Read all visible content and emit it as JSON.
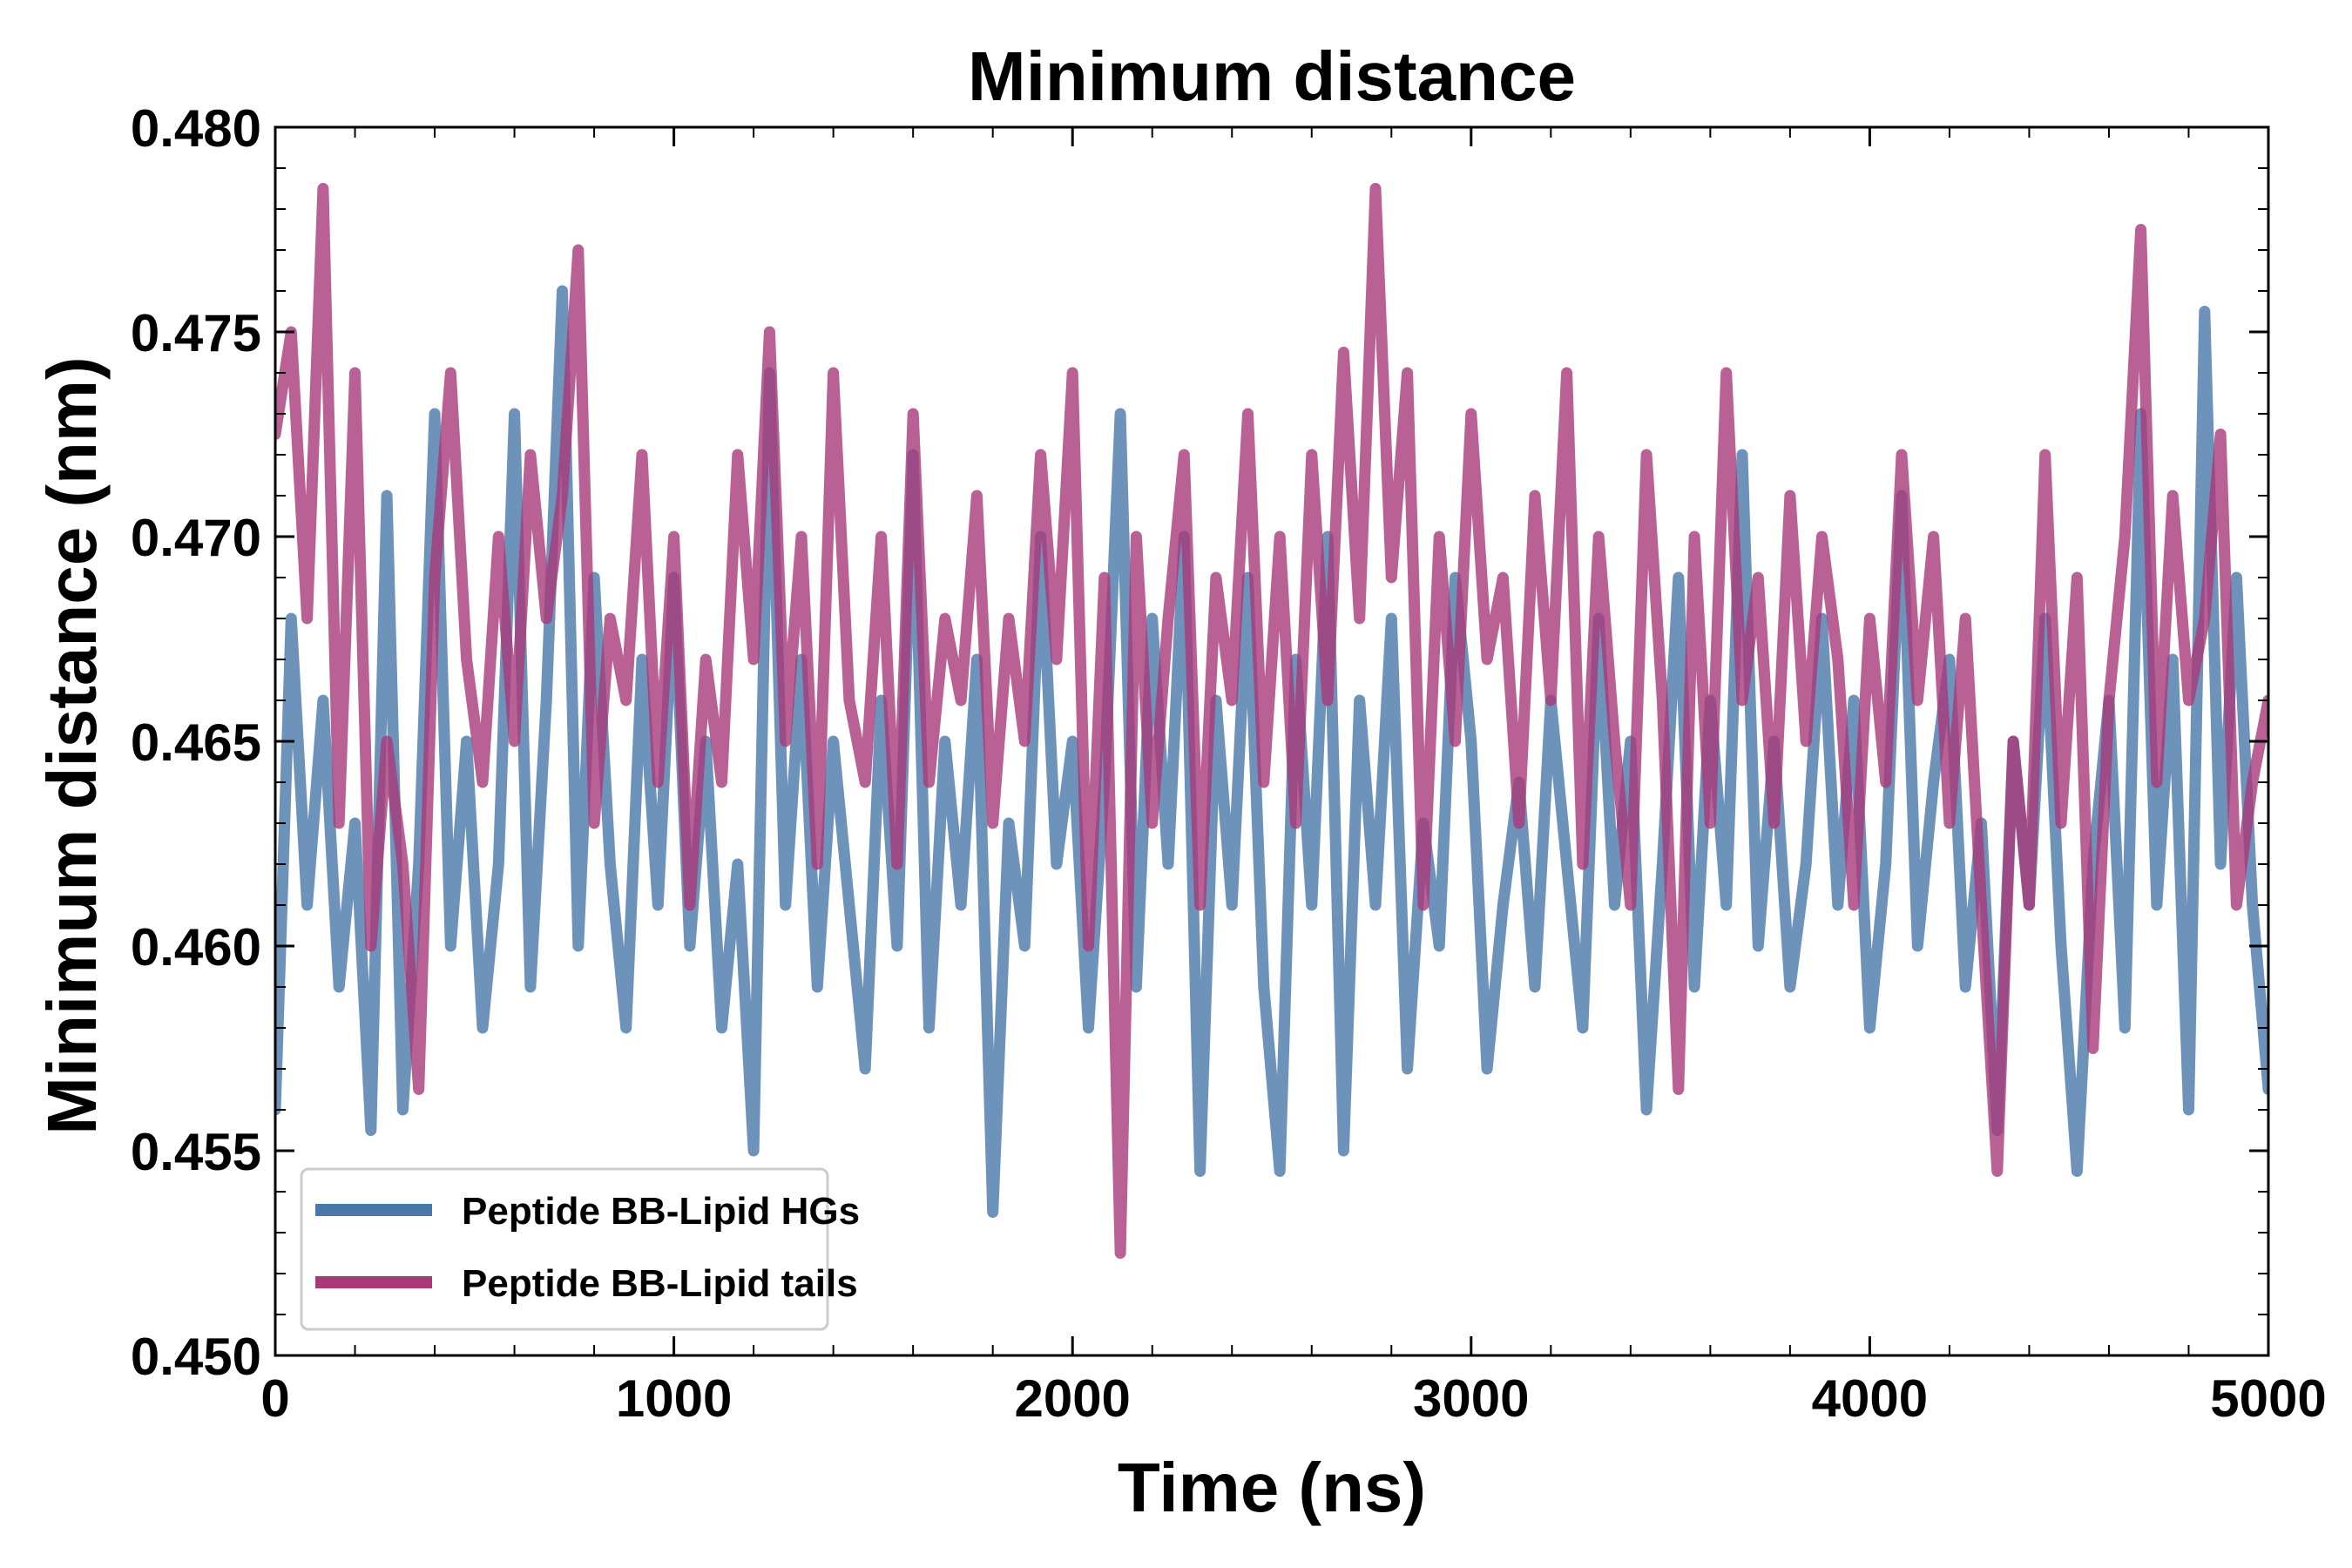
{
  "chart_data": {
    "type": "line",
    "title": "Minimum distance",
    "xlabel": "Time (ns)",
    "ylabel": "Minimum distance (nm)",
    "xlim": [
      0,
      5000
    ],
    "ylim": [
      0.45,
      0.48
    ],
    "x_ticks": [
      0,
      1000,
      2000,
      3000,
      4000,
      5000
    ],
    "x_tick_labels": [
      "0",
      "1000",
      "2000",
      "3000",
      "4000",
      "5000"
    ],
    "y_ticks": [
      0.45,
      0.455,
      0.46,
      0.465,
      0.47,
      0.475,
      0.48
    ],
    "y_tick_labels": [
      "0.450",
      "0.455",
      "0.460",
      "0.465",
      "0.470",
      "0.475",
      "0.480"
    ],
    "grid": false,
    "legend_position": "lower-left",
    "series": [
      {
        "name": "Peptide BB-Lipid HGs",
        "color": "#4a78aa",
        "x": [
          0,
          40,
          80,
          120,
          160,
          200,
          240,
          280,
          320,
          360,
          400,
          440,
          480,
          520,
          560,
          600,
          640,
          680,
          720,
          760,
          800,
          840,
          880,
          920,
          960,
          1000,
          1040,
          1080,
          1120,
          1160,
          1200,
          1240,
          1280,
          1320,
          1360,
          1400,
          1440,
          1480,
          1520,
          1560,
          1600,
          1640,
          1680,
          1720,
          1760,
          1800,
          1840,
          1880,
          1920,
          1960,
          2000,
          2040,
          2080,
          2120,
          2160,
          2200,
          2240,
          2280,
          2320,
          2360,
          2400,
          2440,
          2480,
          2520,
          2560,
          2600,
          2640,
          2680,
          2720,
          2760,
          2800,
          2840,
          2880,
          2920,
          2960,
          3000,
          3040,
          3080,
          3120,
          3160,
          3200,
          3240,
          3280,
          3320,
          3360,
          3400,
          3440,
          3480,
          3520,
          3560,
          3600,
          3640,
          3680,
          3720,
          3760,
          3800,
          3840,
          3880,
          3920,
          3960,
          4000,
          4040,
          4080,
          4120,
          4160,
          4200,
          4240,
          4280,
          4320,
          4360,
          4400,
          4440,
          4480,
          4520,
          4560,
          4600,
          4640,
          4680,
          4720,
          4760,
          4800,
          4840,
          4880,
          4920,
          4960,
          5000
        ],
        "values": [
          0.456,
          0.468,
          0.461,
          0.466,
          0.459,
          0.463,
          0.4555,
          0.471,
          0.456,
          0.462,
          0.473,
          0.46,
          0.465,
          0.458,
          0.462,
          0.473,
          0.459,
          0.466,
          0.476,
          0.46,
          0.469,
          0.462,
          0.458,
          0.467,
          0.461,
          0.469,
          0.46,
          0.465,
          0.458,
          0.462,
          0.455,
          0.474,
          0.461,
          0.467,
          0.459,
          0.465,
          0.461,
          0.457,
          0.466,
          0.46,
          0.472,
          0.458,
          0.465,
          0.461,
          0.467,
          0.4535,
          0.463,
          0.46,
          0.47,
          0.462,
          0.465,
          0.458,
          0.464,
          0.473,
          0.459,
          0.468,
          0.462,
          0.47,
          0.4545,
          0.466,
          0.461,
          0.469,
          0.459,
          0.4545,
          0.467,
          0.461,
          0.47,
          0.455,
          0.466,
          0.461,
          0.468,
          0.457,
          0.463,
          0.46,
          0.469,
          0.465,
          0.457,
          0.461,
          0.464,
          0.459,
          0.466,
          0.462,
          0.458,
          0.468,
          0.461,
          0.465,
          0.456,
          0.462,
          0.469,
          0.459,
          0.466,
          0.461,
          0.472,
          0.46,
          0.465,
          0.459,
          0.462,
          0.468,
          0.461,
          0.466,
          0.458,
          0.462,
          0.471,
          0.46,
          0.464,
          0.467,
          0.459,
          0.463,
          0.4555,
          0.465,
          0.461,
          0.468,
          0.46,
          0.4545,
          0.462,
          0.466,
          0.458,
          0.473,
          0.461,
          0.467,
          0.456,
          0.4755,
          0.462,
          0.469,
          0.461,
          0.4565
        ]
      },
      {
        "name": "Peptide BB-Lipid tails",
        "color": "#a83a7a",
        "x": [
          0,
          40,
          80,
          120,
          160,
          200,
          240,
          280,
          320,
          360,
          400,
          440,
          480,
          520,
          560,
          600,
          640,
          680,
          720,
          760,
          800,
          840,
          880,
          920,
          960,
          1000,
          1040,
          1080,
          1120,
          1160,
          1200,
          1240,
          1280,
          1320,
          1360,
          1400,
          1440,
          1480,
          1520,
          1560,
          1600,
          1640,
          1680,
          1720,
          1760,
          1800,
          1840,
          1880,
          1920,
          1960,
          2000,
          2040,
          2080,
          2120,
          2160,
          2200,
          2240,
          2280,
          2320,
          2360,
          2400,
          2440,
          2480,
          2520,
          2560,
          2600,
          2640,
          2680,
          2720,
          2760,
          2800,
          2840,
          2880,
          2920,
          2960,
          3000,
          3040,
          3080,
          3120,
          3160,
          3200,
          3240,
          3280,
          3320,
          3360,
          3400,
          3440,
          3480,
          3520,
          3560,
          3600,
          3640,
          3680,
          3720,
          3760,
          3800,
          3840,
          3880,
          3920,
          3960,
          4000,
          4040,
          4080,
          4120,
          4160,
          4200,
          4240,
          4280,
          4320,
          4360,
          4400,
          4440,
          4480,
          4520,
          4560,
          4600,
          4640,
          4680,
          4720,
          4760,
          4800,
          4840,
          4880,
          4920,
          4960,
          5000
        ],
        "values": [
          0.4725,
          0.475,
          0.468,
          0.4785,
          0.463,
          0.474,
          0.46,
          0.465,
          0.462,
          0.4565,
          0.469,
          0.474,
          0.467,
          0.464,
          0.47,
          0.465,
          0.472,
          0.468,
          0.471,
          0.477,
          0.463,
          0.468,
          0.466,
          0.472,
          0.464,
          0.47,
          0.461,
          0.467,
          0.464,
          0.472,
          0.467,
          0.475,
          0.465,
          0.47,
          0.462,
          0.474,
          0.466,
          0.464,
          0.47,
          0.462,
          0.473,
          0.464,
          0.468,
          0.466,
          0.471,
          0.463,
          0.468,
          0.465,
          0.472,
          0.467,
          0.474,
          0.46,
          0.469,
          0.4525,
          0.47,
          0.463,
          0.468,
          0.472,
          0.461,
          0.469,
          0.466,
          0.473,
          0.464,
          0.47,
          0.463,
          0.472,
          0.466,
          0.4745,
          0.468,
          0.4785,
          0.469,
          0.474,
          0.461,
          0.47,
          0.465,
          0.473,
          0.467,
          0.469,
          0.463,
          0.471,
          0.466,
          0.474,
          0.462,
          0.47,
          0.465,
          0.461,
          0.472,
          0.466,
          0.4565,
          0.47,
          0.463,
          0.474,
          0.466,
          0.469,
          0.463,
          0.471,
          0.465,
          0.47,
          0.467,
          0.461,
          0.468,
          0.464,
          0.472,
          0.466,
          0.47,
          0.463,
          0.468,
          0.461,
          0.4545,
          0.465,
          0.461,
          0.472,
          0.463,
          0.469,
          0.4575,
          0.466,
          0.47,
          0.4775,
          0.464,
          0.471,
          0.466,
          0.468,
          0.4725,
          0.461,
          0.464,
          0.466
        ]
      }
    ]
  }
}
